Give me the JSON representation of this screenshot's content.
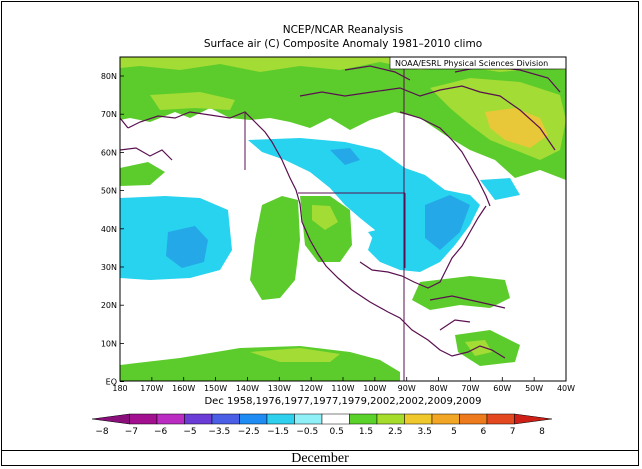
{
  "title_line1": "NCEP/NCAR Reanalysis",
  "title_line2": "Surface air (C) Composite Anomaly 1981–2010 climo",
  "credit": "NOAA/ESRL Physical Sciences Division",
  "subtitle": "Dec  1958,1976,1977,1977,1979,2002,2002,2009,2009",
  "caption": "December",
  "lat_labels": [
    "80N",
    "70N",
    "60N",
    "50N",
    "40N",
    "30N",
    "20N",
    "10N",
    "EQ"
  ],
  "lon_labels": [
    "180",
    "170W",
    "160W",
    "150W",
    "140W",
    "130W",
    "120W",
    "110W",
    "100W",
    "90W",
    "80W",
    "70W",
    "60W",
    "50W",
    "40W"
  ],
  "colorbar": {
    "labels": [
      "−8",
      "−7",
      "−6",
      "−5",
      "−3.5",
      "−2.5",
      "−1.5",
      "−0.5",
      "0.5",
      "1.5",
      "2.5",
      "3.5",
      "5",
      "6",
      "7",
      "8"
    ],
    "colors": [
      "#8a0f7a",
      "#a2108f",
      "#bb2cc3",
      "#6b3cd6",
      "#4a5ee6",
      "#1e8cf2",
      "#2fd0ee",
      "#8ff0f8",
      "#ffffff",
      "#5bd22a",
      "#a6dc2c",
      "#eec82c",
      "#f2a626",
      "#ee7a1e",
      "#e44820",
      "#cf2018"
    ]
  },
  "colors": {
    "ocean_positive": "#5ccc2c",
    "light_positive": "#a3dc34",
    "yellow": "#e8c838",
    "neg_light": "#27d3ee",
    "neg_mid": "#25a8e8",
    "coast": "#5a1050"
  }
}
